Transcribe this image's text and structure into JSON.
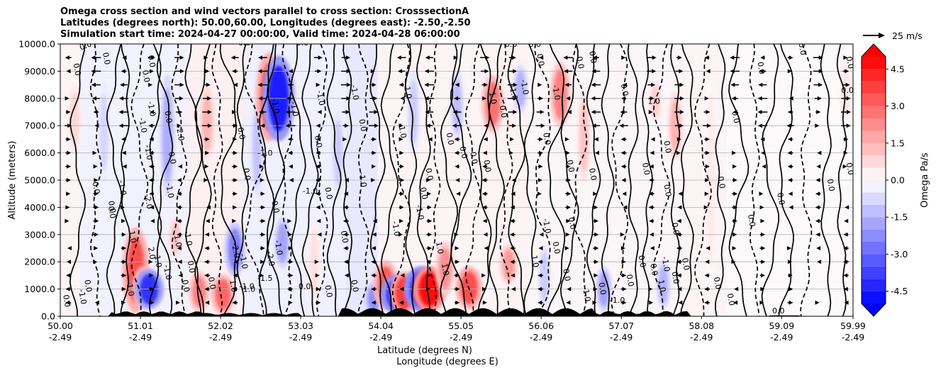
{
  "chart_data": {
    "type": "heatmap",
    "title_lines": [
      "Omega cross section and wind vectors parallel to cross section: CrosssectionA",
      "Latitudes (degrees north): 50.00,60.00, Longitudes (degrees east): -2.50,-2.50",
      "Simulation start time: 2024-04-27 00:00:00, Valid time: 2024-04-28 06:00:00"
    ],
    "ylabel": "Altitude (meters)",
    "xlabel_line1": "Latitude (degrees N)",
    "xlabel_line2": "Longitude (degrees E)",
    "ylim": [
      0,
      10000
    ],
    "y_ticks": [
      "0.0",
      "1000.0",
      "2000.0",
      "3000.0",
      "4000.0",
      "5000.0",
      "6000.0",
      "7000.0",
      "8000.0",
      "9000.0",
      "10000.0"
    ],
    "x_range": [
      50.0,
      59.99
    ],
    "x_ticks": [
      {
        "lat": 50.0,
        "lat_label": "50.00",
        "lon_label": "-2.49"
      },
      {
        "lat": 51.01,
        "lat_label": "51.01",
        "lon_label": "-2.49"
      },
      {
        "lat": 52.02,
        "lat_label": "52.02",
        "lon_label": "-2.49"
      },
      {
        "lat": 53.03,
        "lat_label": "53.03",
        "lon_label": "-2.49"
      },
      {
        "lat": 54.04,
        "lat_label": "54.04",
        "lon_label": "-2.49"
      },
      {
        "lat": 55.05,
        "lat_label": "55.05",
        "lon_label": "-2.49"
      },
      {
        "lat": 56.06,
        "lat_label": "56.06",
        "lon_label": "-2.49"
      },
      {
        "lat": 57.07,
        "lat_label": "57.07",
        "lon_label": "-2.49"
      },
      {
        "lat": 58.08,
        "lat_label": "58.08",
        "lon_label": "-2.49"
      },
      {
        "lat": 59.09,
        "lat_label": "59.09",
        "lon_label": "-2.49"
      },
      {
        "lat": 59.99,
        "lat_label": "59.99",
        "lon_label": "-2.49"
      }
    ],
    "grid": "horizontal",
    "colorbar": {
      "label": "Omega Pa/s",
      "range": [
        -5.0,
        5.0
      ],
      "step": 0.5,
      "extend": "both",
      "ticks": [
        "-4.5",
        "-3.0",
        "-1.5",
        "0.0",
        "1.5",
        "3.0",
        "4.5"
      ]
    },
    "quiver_key": {
      "label": "25 m/s",
      "speed": 25
    },
    "omega_features": [
      {
        "lat": 50.18,
        "z0": 6000,
        "z1": 8500,
        "value": 0.8
      },
      {
        "lat": 50.55,
        "z0": 5000,
        "z1": 8500,
        "value": -0.8
      },
      {
        "lat": 50.95,
        "z0": 200,
        "z1": 3200,
        "value": 3.5
      },
      {
        "lat": 51.05,
        "z0": 300,
        "z1": 1800,
        "value": 2.8
      },
      {
        "lat": 51.12,
        "z0": 300,
        "z1": 1700,
        "value": -4.0
      },
      {
        "lat": 51.35,
        "z0": 4500,
        "z1": 8800,
        "value": -1.6
      },
      {
        "lat": 51.45,
        "z0": 2200,
        "z1": 3600,
        "value": 1.2
      },
      {
        "lat": 51.75,
        "z0": 200,
        "z1": 1600,
        "value": 2.5
      },
      {
        "lat": 51.85,
        "z0": 5800,
        "z1": 8400,
        "value": 1.5
      },
      {
        "lat": 52.05,
        "z0": 100,
        "z1": 1500,
        "value": 3.0
      },
      {
        "lat": 52.2,
        "z0": 1500,
        "z1": 3400,
        "value": -2.5
      },
      {
        "lat": 52.48,
        "z0": 4500,
        "z1": 7800,
        "value": -1.2
      },
      {
        "lat": 52.63,
        "z0": 6500,
        "z1": 9600,
        "value": 3.5
      },
      {
        "lat": 52.75,
        "z0": 6500,
        "z1": 9500,
        "value": -4.5
      },
      {
        "lat": 52.8,
        "z0": 1800,
        "z1": 3600,
        "value": -1.8
      },
      {
        "lat": 53.2,
        "z0": 500,
        "z1": 3500,
        "value": 0.6
      },
      {
        "lat": 53.5,
        "z0": 4500,
        "z1": 7500,
        "value": -1.0
      },
      {
        "lat": 53.95,
        "z0": 100,
        "z1": 1200,
        "value": -2.2
      },
      {
        "lat": 54.1,
        "z0": 300,
        "z1": 2000,
        "value": 3.2
      },
      {
        "lat": 54.25,
        "z0": 100,
        "z1": 1500,
        "value": -4.8
      },
      {
        "lat": 54.33,
        "z0": 100,
        "z1": 1600,
        "value": 3.8
      },
      {
        "lat": 54.45,
        "z0": 6000,
        "z1": 9000,
        "value": -1.0
      },
      {
        "lat": 54.55,
        "z0": 200,
        "z1": 1800,
        "value": -5.0
      },
      {
        "lat": 54.65,
        "z0": 200,
        "z1": 1800,
        "value": 4.8
      },
      {
        "lat": 54.85,
        "z0": 800,
        "z1": 2700,
        "value": 2.2
      },
      {
        "lat": 55.0,
        "z0": 6500,
        "z1": 9000,
        "value": -1.3
      },
      {
        "lat": 55.15,
        "z0": 300,
        "z1": 1800,
        "value": 3.5
      },
      {
        "lat": 55.45,
        "z0": 6800,
        "z1": 8800,
        "value": 2.8
      },
      {
        "lat": 55.65,
        "z0": 1200,
        "z1": 2600,
        "value": 2.0
      },
      {
        "lat": 55.8,
        "z0": 7500,
        "z1": 9200,
        "value": -1.5
      },
      {
        "lat": 56.1,
        "z0": 300,
        "z1": 2600,
        "value": -1.0
      },
      {
        "lat": 56.3,
        "z0": 7000,
        "z1": 9300,
        "value": 2.5
      },
      {
        "lat": 56.6,
        "z0": 5000,
        "z1": 8200,
        "value": 1.2
      },
      {
        "lat": 56.85,
        "z0": 200,
        "z1": 1800,
        "value": -1.8
      },
      {
        "lat": 57.5,
        "z0": 7200,
        "z1": 8600,
        "value": 1.0
      },
      {
        "lat": 57.6,
        "z0": 300,
        "z1": 2000,
        "value": -1.5
      },
      {
        "lat": 57.75,
        "z0": 5800,
        "z1": 8200,
        "value": 1.5
      },
      {
        "lat": 58.2,
        "z0": 1000,
        "z1": 9000,
        "value": 0.4
      },
      {
        "lat": 59.9,
        "z0": 7000,
        "z1": 9500,
        "value": 0.5
      }
    ],
    "contour_labels": [
      {
        "text": "0.0",
        "lat": 50.33,
        "alt": 9850,
        "rot": -20
      },
      {
        "text": "0.0",
        "lat": 50.55,
        "alt": 9450,
        "rot": 80
      },
      {
        "text": "0.0",
        "lat": 50.18,
        "alt": 9050,
        "rot": 80
      },
      {
        "text": "0.0",
        "lat": 51.12,
        "alt": 9350,
        "rot": 80
      },
      {
        "text": "0.0",
        "lat": 51.05,
        "alt": 8800,
        "rot": 80
      },
      {
        "text": "-1.0",
        "lat": 51.12,
        "alt": 7600,
        "rot": 80
      },
      {
        "text": "-1.0",
        "lat": 51.01,
        "alt": 7000,
        "rot": 80
      },
      {
        "text": "0.0",
        "lat": 51.33,
        "alt": 7300,
        "rot": 80
      },
      {
        "text": "-2.0",
        "lat": 51.48,
        "alt": 6700,
        "rot": 80
      },
      {
        "text": "-1.0",
        "lat": 51.08,
        "alt": 6000,
        "rot": 80
      },
      {
        "text": "0.0",
        "lat": 51.38,
        "alt": 5800,
        "rot": 80
      },
      {
        "text": "-1.0",
        "lat": 50.75,
        "alt": 4700,
        "rot": 80
      },
      {
        "text": "0.0",
        "lat": 50.42,
        "alt": 4700,
        "rot": 80
      },
      {
        "text": "0.0",
        "lat": 50.62,
        "alt": 4000,
        "rot": 80
      },
      {
        "text": "-2.0",
        "lat": 51.08,
        "alt": 4200,
        "rot": 80
      },
      {
        "text": "-1.0",
        "lat": 51.35,
        "alt": 4600,
        "rot": 80
      },
      {
        "text": "0.0",
        "lat": 50.62,
        "alt": 3800,
        "rot": 80
      },
      {
        "text": "1.0",
        "lat": 50.88,
        "alt": 2900,
        "rot": 80
      },
      {
        "text": "2.0",
        "lat": 51.12,
        "alt": 2300,
        "rot": 80
      },
      {
        "text": "-1.0",
        "lat": 50.85,
        "alt": 1000,
        "rot": 80
      },
      {
        "text": "0.0",
        "lat": 50.32,
        "alt": 1100,
        "rot": 80
      },
      {
        "text": "-1.0",
        "lat": 50.25,
        "alt": 700,
        "rot": 80
      },
      {
        "text": "0.0",
        "lat": 50.05,
        "alt": 550,
        "rot": 80
      },
      {
        "text": "1.0",
        "lat": 51.2,
        "alt": 2000,
        "rot": 80
      },
      {
        "text": "-1.0",
        "lat": 51.32,
        "alt": 1600,
        "rot": 80
      },
      {
        "text": "1.0",
        "lat": 51.45,
        "alt": 2750,
        "rot": 80
      },
      {
        "text": "-1.0",
        "lat": 51.58,
        "alt": 2850,
        "rot": 80
      },
      {
        "text": "0.0",
        "lat": 51.62,
        "alt": 1800,
        "rot": 80
      },
      {
        "text": "0.0",
        "lat": 51.55,
        "alt": 1100,
        "rot": 80
      },
      {
        "text": "0.0",
        "lat": 51.88,
        "alt": 1200,
        "rot": 80
      },
      {
        "text": "1.0",
        "lat": 52.15,
        "alt": 1100,
        "rot": 80
      },
      {
        "text": "-1.0",
        "lat": 52.35,
        "alt": 1000,
        "rot": 0
      },
      {
        "text": "-1.0",
        "lat": 52.28,
        "alt": 2000,
        "rot": 80
      },
      {
        "text": "-2.0",
        "lat": 52.18,
        "alt": 2400,
        "rot": 80
      },
      {
        "text": "0.0",
        "lat": 52.25,
        "alt": 6700,
        "rot": 80
      },
      {
        "text": "0.0",
        "lat": 52.32,
        "alt": 5200,
        "rot": 80
      },
      {
        "text": "-1.0",
        "lat": 52.58,
        "alt": 5900,
        "rot": 0
      },
      {
        "text": "0.0",
        "lat": 52.32,
        "alt": 9950,
        "rot": 0
      },
      {
        "text": "0.0",
        "lat": 53.05,
        "alt": 9950,
        "rot": 0
      },
      {
        "text": "0.0",
        "lat": 52.68,
        "alt": 4000,
        "rot": 80
      },
      {
        "text": "-1.0",
        "lat": 52.68,
        "alt": 7700,
        "rot": 80
      },
      {
        "text": "-1.0",
        "lat": 52.92,
        "alt": 7600,
        "rot": 80
      },
      {
        "text": "-1.0",
        "lat": 53.25,
        "alt": 8000,
        "rot": 80
      },
      {
        "text": "0.0",
        "lat": 53.22,
        "alt": 6400,
        "rot": 80
      },
      {
        "text": "-1.0",
        "lat": 53.15,
        "alt": 4500,
        "rot": 0
      },
      {
        "text": "0.0",
        "lat": 53.35,
        "alt": 4500,
        "rot": 80
      },
      {
        "text": "-1.5",
        "lat": 52.58,
        "alt": 1300,
        "rot": 0
      },
      {
        "text": "1.0",
        "lat": 52.38,
        "alt": 900,
        "rot": 0
      },
      {
        "text": "-1.0",
        "lat": 52.72,
        "alt": 2500,
        "rot": 80
      },
      {
        "text": "-2.0",
        "lat": 52.62,
        "alt": 2100,
        "rot": 80
      },
      {
        "text": "0.0",
        "lat": 53.08,
        "alt": 1000,
        "rot": 0
      },
      {
        "text": "0.0",
        "lat": 53.35,
        "alt": 900,
        "rot": 80
      },
      {
        "text": "0.0",
        "lat": 53.55,
        "alt": 2900,
        "rot": 80
      },
      {
        "text": "-1.0",
        "lat": 53.68,
        "alt": 8200,
        "rot": 80
      },
      {
        "text": "0.0",
        "lat": 53.78,
        "alt": 7000,
        "rot": 80
      },
      {
        "text": "-1.0",
        "lat": 53.78,
        "alt": 5000,
        "rot": 80
      },
      {
        "text": "0.0",
        "lat": 53.68,
        "alt": 1100,
        "rot": 80
      },
      {
        "text": "-1.0",
        "lat": 54.2,
        "alt": 3200,
        "rot": 80
      },
      {
        "text": "-1.0",
        "lat": 54.5,
        "alt": 3800,
        "rot": 80
      },
      {
        "text": "0.0",
        "lat": 54.62,
        "alt": 5200,
        "rot": 80
      },
      {
        "text": "1.0",
        "lat": 54.35,
        "alt": 8200,
        "rot": 80
      },
      {
        "text": "-1.0",
        "lat": 54.28,
        "alt": 6800,
        "rot": 80
      },
      {
        "text": "0.0",
        "lat": 54.55,
        "alt": 4500,
        "rot": 80
      },
      {
        "text": "1.0",
        "lat": 54.82,
        "alt": 1700,
        "rot": 80
      },
      {
        "text": "1.0",
        "lat": 54.75,
        "alt": 2500,
        "rot": 80
      },
      {
        "text": "0.0",
        "lat": 54.88,
        "alt": 6500,
        "rot": 80
      },
      {
        "text": "0.0",
        "lat": 55.05,
        "alt": 6000,
        "rot": 80
      },
      {
        "text": "0.0",
        "lat": 55.18,
        "alt": 5800,
        "rot": 80
      },
      {
        "text": "0.0",
        "lat": 55.35,
        "alt": 5500,
        "rot": 80
      },
      {
        "text": "1.0",
        "lat": 55.42,
        "alt": 8000,
        "rot": 80
      },
      {
        "text": "0.0",
        "lat": 55.55,
        "alt": 7500,
        "rot": 80
      },
      {
        "text": "-1.0",
        "lat": 55.68,
        "alt": 8200,
        "rot": 80
      },
      {
        "text": "-1.0",
        "lat": 55.82,
        "alt": 8400,
        "rot": 80
      },
      {
        "text": "0.0",
        "lat": 55.68,
        "alt": 9900,
        "rot": 0
      },
      {
        "text": "0.0",
        "lat": 55.98,
        "alt": 9900,
        "rot": 0
      },
      {
        "text": "0.0",
        "lat": 56.02,
        "alt": 9400,
        "rot": 80
      },
      {
        "text": "0.0",
        "lat": 56.52,
        "alt": 9300,
        "rot": 80
      },
      {
        "text": "0.0",
        "lat": 56.68,
        "alt": 9500,
        "rot": 80
      },
      {
        "text": "-1.0",
        "lat": 56.22,
        "alt": 8200,
        "rot": 80
      },
      {
        "text": "0.0",
        "lat": 56.4,
        "alt": 5500,
        "rot": 80
      },
      {
        "text": "0.0",
        "lat": 56.68,
        "alt": 5200,
        "rot": 80
      },
      {
        "text": "0.0",
        "lat": 56.1,
        "alt": 6500,
        "rot": 80
      },
      {
        "text": "0.0",
        "lat": 56.42,
        "alt": 3400,
        "rot": 80
      },
      {
        "text": "-1.0",
        "lat": 56.1,
        "alt": 3300,
        "rot": 80
      },
      {
        "text": "0.0",
        "lat": 56.22,
        "alt": 2500,
        "rot": 80
      },
      {
        "text": "1.0",
        "lat": 55.95,
        "alt": 2000,
        "rot": 80
      },
      {
        "text": "0.0",
        "lat": 56.35,
        "alt": 1500,
        "rot": 80
      },
      {
        "text": "-1.0",
        "lat": 56.6,
        "alt": 800,
        "rot": 80
      },
      {
        "text": "0.0",
        "lat": 56.8,
        "alt": 1000,
        "rot": 80
      },
      {
        "text": "-1.0",
        "lat": 57.02,
        "alt": 500,
        "rot": 0
      },
      {
        "text": "0.0",
        "lat": 57.15,
        "alt": 1300,
        "rot": 80
      },
      {
        "text": "0.0",
        "lat": 57.3,
        "alt": 2000,
        "rot": 80
      },
      {
        "text": "0.0",
        "lat": 57.45,
        "alt": 1700,
        "rot": 80
      },
      {
        "text": "1.0",
        "lat": 57.55,
        "alt": 1100,
        "rot": 80
      },
      {
        "text": "-1.0",
        "lat": 57.6,
        "alt": 1900,
        "rot": 80
      },
      {
        "text": "0.0",
        "lat": 57.72,
        "alt": 1400,
        "rot": 80
      },
      {
        "text": "0.0",
        "lat": 57.85,
        "alt": 1900,
        "rot": 80
      },
      {
        "text": "1.0",
        "lat": 57.48,
        "alt": 7800,
        "rot": 0
      },
      {
        "text": "0.0",
        "lat": 57.08,
        "alt": 8300,
        "rot": 80
      },
      {
        "text": "0.0",
        "lat": 57.35,
        "alt": 5400,
        "rot": 80
      },
      {
        "text": "0.0",
        "lat": 57.62,
        "alt": 6200,
        "rot": 80
      },
      {
        "text": "0.0",
        "lat": 57.62,
        "alt": 4600,
        "rot": 80
      },
      {
        "text": "0.0",
        "lat": 57.72,
        "alt": 3200,
        "rot": 80
      },
      {
        "text": "0.0",
        "lat": 58.3,
        "alt": 4900,
        "rot": 80
      },
      {
        "text": "0.0",
        "lat": 58.48,
        "alt": 7300,
        "rot": 80
      },
      {
        "text": "0.0",
        "lat": 58.68,
        "alt": 3500,
        "rot": 80
      },
      {
        "text": "0.0",
        "lat": 58.8,
        "alt": 9100,
        "rot": 80
      },
      {
        "text": "0.0",
        "lat": 59.05,
        "alt": 4300,
        "rot": 80
      },
      {
        "text": "0.0",
        "lat": 59.32,
        "alt": 9800,
        "rot": 80
      },
      {
        "text": "0.0",
        "lat": 59.68,
        "alt": 4800,
        "rot": 80
      },
      {
        "text": "0.0",
        "lat": 59.92,
        "alt": 8200,
        "rot": 0
      },
      {
        "text": "0.0",
        "lat": 59.92,
        "alt": 5400,
        "rot": 80
      },
      {
        "text": "0.0",
        "lat": 59.92,
        "alt": 9300,
        "rot": 80
      },
      {
        "text": "0.0",
        "lat": 58.42,
        "alt": 600,
        "rot": 80
      },
      {
        "text": "0.0",
        "lat": 58.25,
        "alt": 1200,
        "rot": 80
      },
      {
        "text": "0.0",
        "lat": 59.05,
        "alt": 100,
        "rot": 0
      }
    ]
  }
}
